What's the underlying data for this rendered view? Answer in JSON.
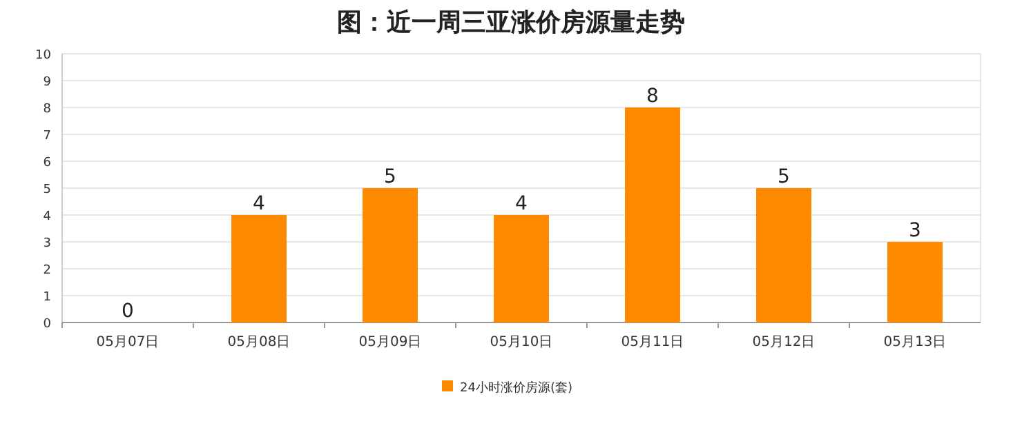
{
  "chart_data": {
    "type": "bar",
    "title": "图：近一周三亚涨价房源量走势",
    "categories": [
      "05月07日",
      "05月08日",
      "05月09日",
      "05月10日",
      "05月11日",
      "05月12日",
      "05月13日"
    ],
    "series": [
      {
        "name": "24小时涨价房源(套)",
        "color": "#ff8a00",
        "values": [
          0,
          4,
          5,
          4,
          8,
          5,
          3
        ]
      }
    ],
    "ylim": [
      0,
      10
    ],
    "yticks": [
      0,
      1,
      2,
      3,
      4,
      5,
      6,
      7,
      8,
      9,
      10
    ],
    "grid": "y",
    "legend": "bottom",
    "data_labels": true
  }
}
